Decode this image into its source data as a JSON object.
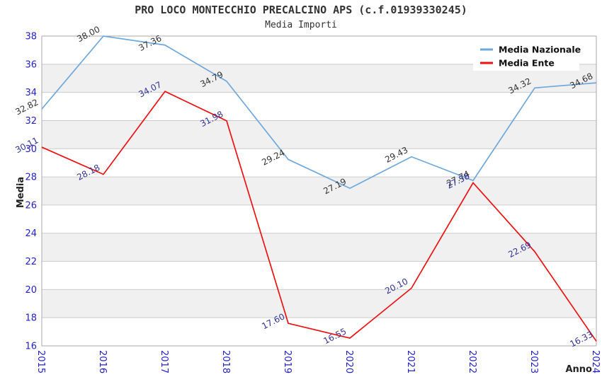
{
  "chart_data": {
    "type": "line",
    "title": "PRO LOCO MONTECCHIO PRECALCINO APS (c.f.01939330245)",
    "subtitle": "Media Importi",
    "xlabel": "Anno",
    "ylabel": "Media",
    "categories": [
      "2015",
      "2016",
      "2017",
      "2018",
      "2019",
      "2020",
      "2021",
      "2022",
      "2023",
      "2024"
    ],
    "series": [
      {
        "name": "Media Nazionale",
        "color": "#6fa8dc",
        "label_color": "#333333",
        "values": [
          32.82,
          38.0,
          37.36,
          34.79,
          29.24,
          27.19,
          29.43,
          27.74,
          34.32,
          34.68
        ]
      },
      {
        "name": "Media Ente",
        "color": "#ee1111",
        "label_color": "#333399",
        "values": [
          30.11,
          28.18,
          34.07,
          31.98,
          17.6,
          16.55,
          20.1,
          27.58,
          22.69,
          16.33
        ]
      }
    ],
    "ylim": [
      16,
      38
    ],
    "ytick_step": 2,
    "yticks": [
      16,
      18,
      20,
      22,
      24,
      26,
      28,
      30,
      32,
      34,
      36,
      38
    ],
    "grid": true,
    "legend_position": "top-right",
    "point_label_decimals": 2,
    "style": {
      "band_color": "#f0f0f0",
      "grid_color": "#cccccc",
      "border_color": "#aaaaaa",
      "tick_color": "#2222cc",
      "title_color": "#333333",
      "legend_bg": "#ffffff",
      "legend_text_color": "#111111"
    }
  }
}
